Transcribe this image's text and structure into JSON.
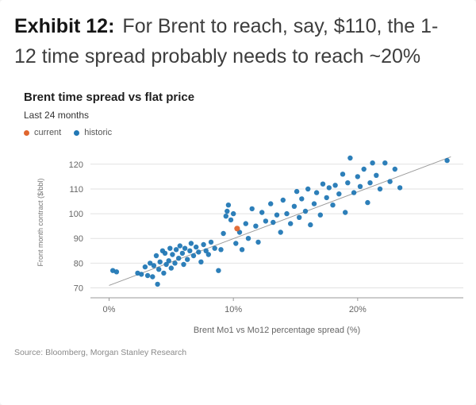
{
  "heading": {
    "label": "Exhibit 12:",
    "text": "For Brent to reach, say, $110, the 1-12 time spread probably needs to reach ~20%"
  },
  "chart": {
    "title": "Brent time spread vs flat price",
    "subtitle": "Last 24 months",
    "legend": [
      {
        "label": "current",
        "color": "#e0662e"
      },
      {
        "label": "historic",
        "color": "#2278b5"
      }
    ]
  },
  "source": "Source: Bloomberg, Morgan Stanley Research",
  "chart_data": {
    "type": "scatter",
    "title": "Brent time spread vs flat price",
    "subtitle": "Last 24 months",
    "xlabel": "Brent Mo1 vs Mo12 percentage spread (%)",
    "ylabel": "Front month contract ($/bbl)",
    "xlim": [
      -1.5,
      28.5
    ],
    "ylim": [
      66,
      127
    ],
    "x_ticks": [
      0,
      10,
      20
    ],
    "x_tick_labels": [
      "0%",
      "10%",
      "20%"
    ],
    "y_ticks": [
      70,
      80,
      90,
      100,
      110,
      120
    ],
    "grid": "horizontal",
    "legend_position": "top-left",
    "trend_line": {
      "x1": 0,
      "y1": 71,
      "x2": 27.5,
      "y2": 123,
      "color": "#9a9a9a"
    },
    "series": [
      {
        "name": "historic",
        "color": "#2278b5",
        "points": [
          [
            0.3,
            77
          ],
          [
            0.6,
            76.5
          ],
          [
            2.3,
            76
          ],
          [
            2.6,
            75.5
          ],
          [
            2.9,
            78.5
          ],
          [
            3.1,
            75
          ],
          [
            3.3,
            80
          ],
          [
            3.5,
            74.5
          ],
          [
            3.6,
            79
          ],
          [
            3.8,
            83
          ],
          [
            3.9,
            71.5
          ],
          [
            4.0,
            77.5
          ],
          [
            4.1,
            80.5
          ],
          [
            4.3,
            85
          ],
          [
            4.4,
            76
          ],
          [
            4.5,
            84
          ],
          [
            4.6,
            79.5
          ],
          [
            4.8,
            81
          ],
          [
            4.9,
            86
          ],
          [
            5.0,
            78
          ],
          [
            5.1,
            83.5
          ],
          [
            5.3,
            80
          ],
          [
            5.4,
            85.5
          ],
          [
            5.6,
            82
          ],
          [
            5.7,
            87
          ],
          [
            5.9,
            84
          ],
          [
            6.0,
            79.5
          ],
          [
            6.1,
            86
          ],
          [
            6.3,
            81.5
          ],
          [
            6.5,
            85
          ],
          [
            6.6,
            88
          ],
          [
            6.8,
            83
          ],
          [
            7.0,
            86.5
          ],
          [
            7.2,
            84.5
          ],
          [
            7.4,
            80.5
          ],
          [
            7.6,
            87.5
          ],
          [
            7.8,
            85
          ],
          [
            8.0,
            83.5
          ],
          [
            8.2,
            88.5
          ],
          [
            8.5,
            86
          ],
          [
            8.8,
            77
          ],
          [
            9.0,
            85.5
          ],
          [
            9.2,
            92
          ],
          [
            9.4,
            99
          ],
          [
            9.5,
            101
          ],
          [
            9.6,
            103.5
          ],
          [
            9.8,
            97.5
          ],
          [
            10.0,
            100
          ],
          [
            10.2,
            88
          ],
          [
            10.5,
            92.5
          ],
          [
            10.7,
            85.5
          ],
          [
            11.0,
            96
          ],
          [
            11.2,
            90
          ],
          [
            11.5,
            102
          ],
          [
            11.8,
            95
          ],
          [
            12.0,
            88.5
          ],
          [
            12.3,
            100.5
          ],
          [
            12.6,
            97
          ],
          [
            13.0,
            104
          ],
          [
            13.2,
            96.5
          ],
          [
            13.5,
            99.5
          ],
          [
            13.8,
            92.5
          ],
          [
            14.0,
            105.5
          ],
          [
            14.3,
            100
          ],
          [
            14.6,
            96
          ],
          [
            14.9,
            103
          ],
          [
            15.1,
            109
          ],
          [
            15.3,
            98.5
          ],
          [
            15.5,
            106
          ],
          [
            15.8,
            101
          ],
          [
            16.0,
            110
          ],
          [
            16.2,
            95.5
          ],
          [
            16.5,
            104
          ],
          [
            16.7,
            108.5
          ],
          [
            17.0,
            99.5
          ],
          [
            17.2,
            112
          ],
          [
            17.5,
            106.5
          ],
          [
            17.7,
            110.5
          ],
          [
            18.0,
            103.5
          ],
          [
            18.2,
            111.5
          ],
          [
            18.5,
            108
          ],
          [
            18.8,
            116
          ],
          [
            19.0,
            100.5
          ],
          [
            19.2,
            112.5
          ],
          [
            19.4,
            122.5
          ],
          [
            19.7,
            108.5
          ],
          [
            20.0,
            115
          ],
          [
            20.2,
            111
          ],
          [
            20.5,
            118
          ],
          [
            20.8,
            104.5
          ],
          [
            21.0,
            112.5
          ],
          [
            21.2,
            120.5
          ],
          [
            21.5,
            115.5
          ],
          [
            21.8,
            110
          ],
          [
            22.2,
            120.5
          ],
          [
            22.6,
            113
          ],
          [
            23.0,
            118
          ],
          [
            23.4,
            110.5
          ],
          [
            27.2,
            121.5
          ]
        ]
      },
      {
        "name": "current",
        "color": "#e0662e",
        "points": [
          [
            10.3,
            94
          ]
        ]
      }
    ]
  }
}
